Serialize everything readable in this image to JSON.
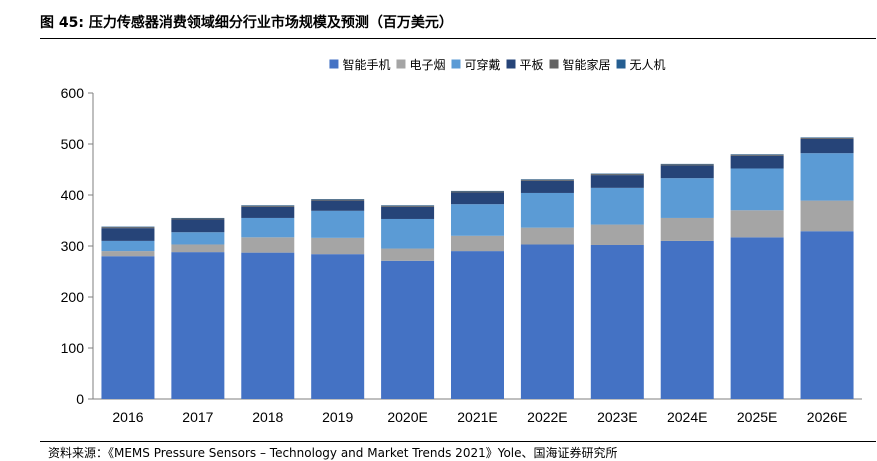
{
  "figure": {
    "title": "图 45: 压力传感器消费领域细分行业市场规模及预测（百万美元）",
    "source": "资料来源：《MEMS Pressure Sensors – Technology and Market Trends 2021》Yole、国海证券研究所"
  },
  "chart_data": {
    "type": "bar",
    "stacked": true,
    "title": "",
    "xlabel": "",
    "ylabel": "",
    "ylim": [
      0,
      600
    ],
    "yticks": [
      0,
      100,
      200,
      300,
      400,
      500,
      600
    ],
    "grid": false,
    "legend_position": "top",
    "categories": [
      "2016",
      "2017",
      "2018",
      "2019",
      "2020E",
      "2021E",
      "2022E",
      "2023E",
      "2024E",
      "2025E",
      "2026E"
    ],
    "series": [
      {
        "name": "智能手机",
        "color": "#4472C4",
        "values": [
          280,
          288,
          287,
          284,
          271,
          290,
          303,
          302,
          310,
          317,
          329
        ]
      },
      {
        "name": "电子烟",
        "color": "#A5A5A5",
        "values": [
          10,
          15,
          30,
          32,
          24,
          30,
          33,
          40,
          45,
          53,
          60
        ]
      },
      {
        "name": "可穿戴",
        "color": "#5B9BD5",
        "values": [
          20,
          24,
          38,
          53,
          58,
          62,
          68,
          72,
          78,
          82,
          93
        ]
      },
      {
        "name": "平板",
        "color": "#264478",
        "values": [
          25,
          25,
          22,
          20,
          24,
          23,
          24,
          25,
          25,
          25,
          28
        ]
      },
      {
        "name": "智能家居",
        "color": "#636363",
        "values": [
          2,
          2,
          2,
          2,
          2,
          2,
          2,
          2,
          2,
          2,
          2
        ]
      },
      {
        "name": "无人机",
        "color": "#255E91",
        "values": [
          1,
          1,
          1,
          1,
          1,
          1,
          1,
          1,
          1,
          1,
          1
        ]
      }
    ]
  }
}
